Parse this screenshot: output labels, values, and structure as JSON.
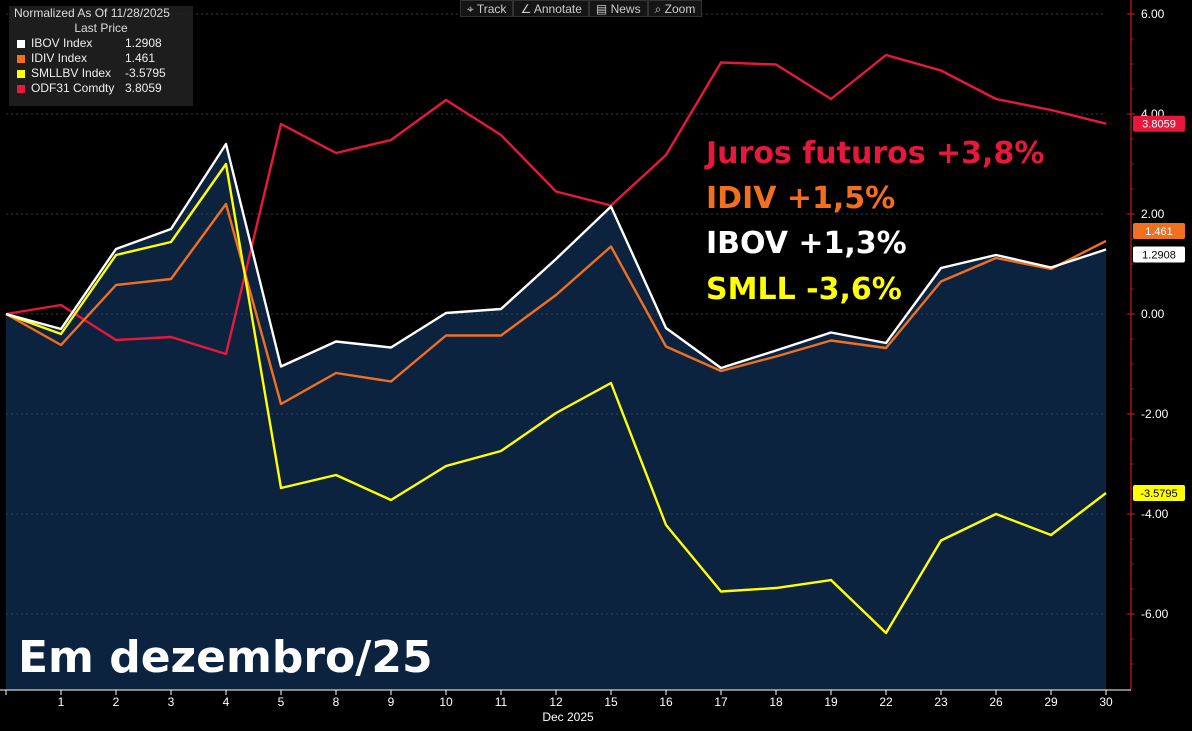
{
  "legend": {
    "header": "Normalized As Of 11/28/2025",
    "subheader": "Last Price",
    "items": [
      {
        "name": "IBOV Index",
        "value": "1.2908",
        "color": "#ffffff"
      },
      {
        "name": "IDIV Index",
        "value": "1.461",
        "color": "#f07020"
      },
      {
        "name": "SMLLBV Index",
        "value": "-3.5795",
        "color": "#ffff00"
      },
      {
        "name": "ODF31 Comdty",
        "value": "3.8059",
        "color": "#e8183c"
      }
    ]
  },
  "toolbar": {
    "track": "Track",
    "annotate": "Annotate",
    "news": "News",
    "zoom": "Zoom"
  },
  "annotations": {
    "juros": "Juros futuros +3,8%",
    "idiv": "IDIV +1,5%",
    "ibov": "IBOV +1,3%",
    "smll": "SMLL -3,6%"
  },
  "month_label": "Em dezembro/25",
  "chart_data": {
    "type": "line",
    "x": [
      "",
      "1",
      "2",
      "3",
      "4",
      "5",
      "8",
      "9",
      "10",
      "11",
      "12",
      "15",
      "16",
      "17",
      "18",
      "19",
      "22",
      "23",
      "26",
      "29",
      "30"
    ],
    "xlabel": "Dec 2025",
    "ylim": [
      -7.0,
      6.0
    ],
    "yticks": [
      "6.00",
      "4.00",
      "2.00",
      "0.00",
      "-2.00",
      "-4.00",
      "-6.00"
    ],
    "series": [
      {
        "name": "IBOV Index",
        "color": "#ffffff",
        "values": [
          0,
          -0.3,
          1.3,
          1.7,
          3.4,
          -1.05,
          -0.55,
          -0.67,
          0.02,
          0.1,
          1.1,
          2.15,
          -0.28,
          -1.08,
          -0.73,
          -0.37,
          -0.58,
          0.92,
          1.18,
          0.93,
          1.2908
        ]
      },
      {
        "name": "IDIV Index",
        "color": "#f07020",
        "values": [
          0,
          -0.62,
          0.58,
          0.7,
          2.2,
          -1.8,
          -1.18,
          -1.35,
          -0.43,
          -0.43,
          0.38,
          1.35,
          -0.65,
          -1.14,
          -0.85,
          -0.53,
          -0.68,
          0.65,
          1.12,
          0.9,
          1.461
        ]
      },
      {
        "name": "SMLLBV Index",
        "color": "#ffff00",
        "values": [
          0,
          -0.4,
          1.18,
          1.44,
          3.0,
          -3.48,
          -3.22,
          -3.72,
          -3.04,
          -2.74,
          -1.98,
          -1.38,
          -4.22,
          -5.55,
          -5.48,
          -5.32,
          -6.38,
          -4.53,
          -4.0,
          -4.42,
          -3.5795
        ]
      },
      {
        "name": "ODF31 Comdty",
        "color": "#e8183c",
        "values": [
          0,
          0.18,
          -0.52,
          -0.46,
          -0.8,
          3.8,
          3.22,
          3.48,
          4.28,
          3.58,
          2.45,
          2.17,
          3.18,
          5.03,
          4.99,
          4.3,
          5.18,
          4.87,
          4.3,
          4.08,
          3.8059
        ]
      }
    ],
    "last_labels": [
      "3.8059",
      "1.461",
      "1.2908",
      "-3.5795"
    ],
    "area_series": "IBOV Index",
    "grid": true
  },
  "colors": {
    "area_fill": "#0c2340",
    "axis": "#cc1a1a",
    "grid": "#404a5a"
  }
}
